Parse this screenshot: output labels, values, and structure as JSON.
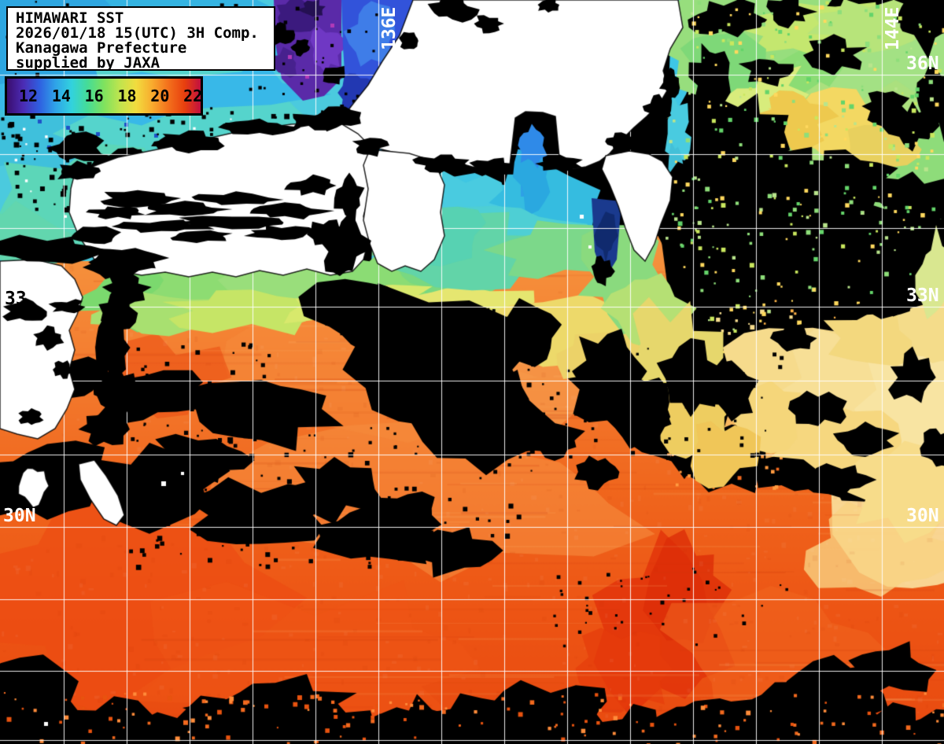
{
  "header": {
    "line1": "HIMAWARI SST",
    "line2": "2026/01/18 15(UTC) 3H Comp.",
    "line3": "Kanagawa Prefecture",
    "line4": "supplied by JAXA"
  },
  "colorbar": {
    "ticks": [
      "12",
      "14",
      "16",
      "18",
      "20",
      "22"
    ],
    "tick_positions_pct": [
      11,
      28,
      45,
      62,
      79,
      96
    ],
    "gradient": [
      "#3a0d6e",
      "#4b2bb4",
      "#2f5fe0",
      "#2fa3e8",
      "#32d2de",
      "#46dc96",
      "#7ee25e",
      "#c0e44e",
      "#f2dc3e",
      "#f8ab2e",
      "#f3701c",
      "#e8400e",
      "#c21040"
    ]
  },
  "map": {
    "lon_labels": [
      {
        "text": "136E"
      },
      {
        "text": "144E"
      }
    ],
    "lat_labels_right": [
      {
        "text": "36N"
      },
      {
        "text": "33N"
      },
      {
        "text": "30N"
      }
    ],
    "lat_label_left": {
      "text": "30N"
    },
    "coast_label": {
      "text": "33"
    },
    "colors": {
      "warm_water": "#f0661d",
      "hot_water": "#e2340e",
      "cold_water": "#49cbde",
      "very_cold_water": "#5a2aa8",
      "cloud_no_data": "#000000",
      "land": "#ffffff",
      "graticule": "#ffffff"
    }
  }
}
